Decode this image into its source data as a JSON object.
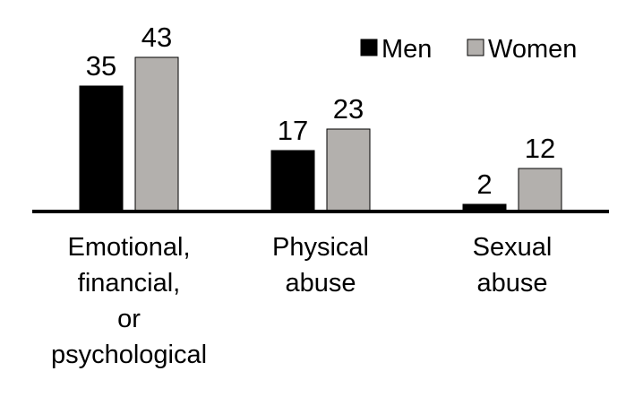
{
  "chart_data": {
    "type": "bar",
    "categories": [
      [
        "Emotional,",
        "financial,",
        "or",
        "psychological"
      ],
      [
        "Physical",
        "abuse"
      ],
      [
        "Sexual",
        "abuse"
      ]
    ],
    "series": [
      {
        "name": "Men",
        "values": [
          35,
          17,
          2
        ],
        "color": "#000000"
      },
      {
        "name": "Women",
        "values": [
          43,
          23,
          12
        ],
        "color": "#b3b0ad"
      }
    ],
    "ylim": [
      0,
      45
    ],
    "grid": false,
    "legend": "top-right",
    "data_labels": true
  }
}
